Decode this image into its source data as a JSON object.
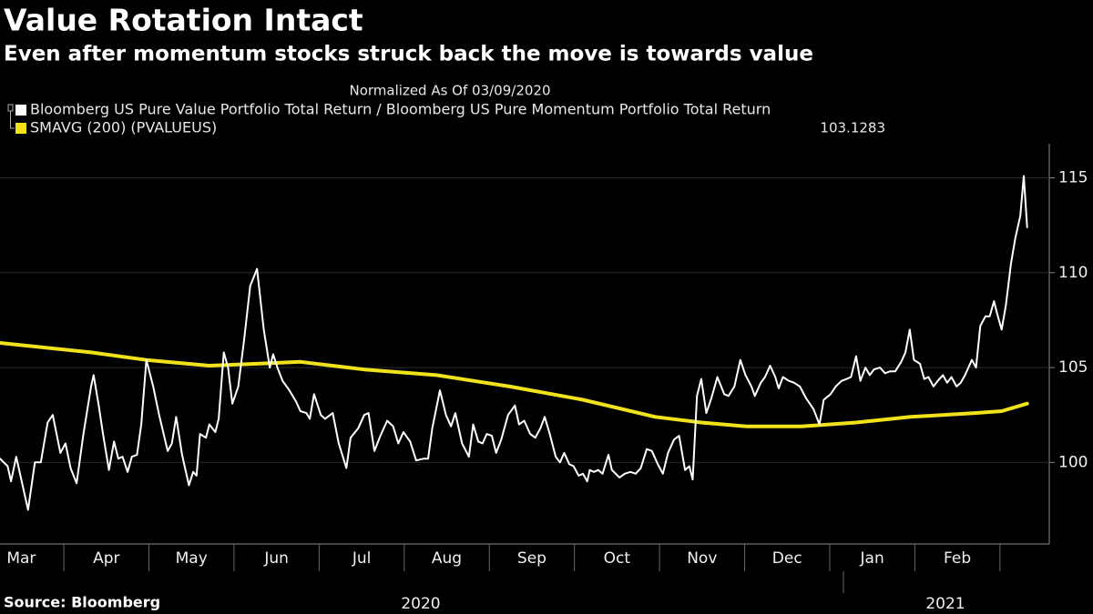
{
  "chart_data": {
    "type": "line",
    "title": "Value Rotation Intact",
    "subtitle": "Even after momentum stocks struck back the move is towards value",
    "note": "Normalized As Of 03/09/2020",
    "source": "Source: Bloomberg",
    "x_year_labels": [
      "2020",
      "2021"
    ],
    "xlim": [
      0.25,
      12.58
    ],
    "xticks": [
      {
        "value": 0.5,
        "label": "Mar"
      },
      {
        "value": 1.5,
        "label": "Apr"
      },
      {
        "value": 2.5,
        "label": "May"
      },
      {
        "value": 3.5,
        "label": "Jun"
      },
      {
        "value": 4.5,
        "label": "Jul"
      },
      {
        "value": 5.5,
        "label": "Aug"
      },
      {
        "value": 6.5,
        "label": "Sep"
      },
      {
        "value": 7.5,
        "label": "Oct"
      },
      {
        "value": 8.5,
        "label": "Nov"
      },
      {
        "value": 9.5,
        "label": "Dec"
      },
      {
        "value": 10.5,
        "label": "Jan"
      },
      {
        "value": 11.5,
        "label": "Feb"
      }
    ],
    "ylim": [
      95.7,
      116.8
    ],
    "yticks": [
      100,
      105,
      110,
      115
    ],
    "grid": true,
    "y_axis_side": "right",
    "series": [
      {
        "name": "Bloomberg US Pure Value Portfolio Total Return / Bloomberg US Pure Momentum Portfolio Total Return",
        "color": "#ffffff",
        "x": [
          0.25,
          0.34,
          0.38,
          0.44,
          0.58,
          0.66,
          0.73,
          0.81,
          0.87,
          0.96,
          1.02,
          1.08,
          1.15,
          1.23,
          1.32,
          1.35,
          1.41,
          1.46,
          1.53,
          1.59,
          1.64,
          1.69,
          1.75,
          1.8,
          1.86,
          1.91,
          1.97,
          2.05,
          2.12,
          2.22,
          2.27,
          2.32,
          2.39,
          2.47,
          2.52,
          2.56,
          2.6,
          2.67,
          2.71,
          2.78,
          2.82,
          2.88,
          2.93,
          2.98,
          3.05,
          3.12,
          3.19,
          3.27,
          3.35,
          3.42,
          3.46,
          3.51,
          3.57,
          3.65,
          3.73,
          3.78,
          3.85,
          3.89,
          3.94,
          4.02,
          4.07,
          4.16,
          4.23,
          4.32,
          4.37,
          4.46,
          4.53,
          4.58,
          4.65,
          4.72,
          4.8,
          4.87,
          4.93,
          4.99,
          5.07,
          5.14,
          5.23,
          5.28,
          5.33,
          5.42,
          5.49,
          5.55,
          5.6,
          5.68,
          5.76,
          5.81,
          5.87,
          5.92,
          5.97,
          6.03,
          6.08,
          6.14,
          6.22,
          6.3,
          6.35,
          6.41,
          6.48,
          6.54,
          6.6,
          6.65,
          6.71,
          6.78,
          6.83,
          6.88,
          6.94,
          6.99,
          7.05,
          7.1,
          7.15,
          7.18,
          7.23,
          7.28,
          7.33,
          7.4,
          7.44,
          7.53,
          7.59,
          7.66,
          7.72,
          7.78,
          7.85,
          7.91,
          7.98,
          8.04,
          8.1,
          8.17,
          8.23,
          8.3,
          8.35,
          8.39,
          8.44,
          8.49,
          8.55,
          8.61,
          8.68,
          8.76,
          8.81,
          8.88,
          8.95,
          9.01,
          9.08,
          9.12,
          9.19,
          9.24,
          9.3,
          9.36,
          9.4,
          9.45,
          9.52,
          9.58,
          9.65,
          9.72,
          9.81,
          9.88,
          9.93,
          10.01,
          10.07,
          10.14,
          10.2,
          10.25,
          10.31,
          10.36,
          10.42,
          10.47,
          10.52,
          10.59,
          10.65,
          10.71,
          10.77,
          10.84,
          10.89,
          10.94,
          10.99,
          11.06,
          11.11,
          11.16,
          11.22,
          11.27,
          11.33,
          11.38,
          11.43,
          11.49,
          11.54,
          11.59,
          11.67,
          11.72,
          11.77,
          11.83,
          11.88,
          11.93,
          11.97,
          12.02,
          12.07,
          12.13,
          12.18,
          12.24,
          12.28,
          12.32
        ],
        "values": [
          100.2,
          99.8,
          99.0,
          100.3,
          97.5,
          100.0,
          100.0,
          102.1,
          102.5,
          100.5,
          101.0,
          99.7,
          98.9,
          101.5,
          104.0,
          104.6,
          103.0,
          101.5,
          99.6,
          101.1,
          100.2,
          100.3,
          99.5,
          100.3,
          100.4,
          102.0,
          105.4,
          104.0,
          102.5,
          100.6,
          101.0,
          102.4,
          100.4,
          98.8,
          99.5,
          99.3,
          101.5,
          101.3,
          102.0,
          101.6,
          102.3,
          105.8,
          105.0,
          103.1,
          104.0,
          106.5,
          109.3,
          110.2,
          107.0,
          105.0,
          105.7,
          105.0,
          104.3,
          103.8,
          103.2,
          102.7,
          102.6,
          102.3,
          103.6,
          102.5,
          102.3,
          102.6,
          101.0,
          99.7,
          101.3,
          101.8,
          102.5,
          102.6,
          100.6,
          101.4,
          102.2,
          101.9,
          101.0,
          101.6,
          101.1,
          100.1,
          100.2,
          100.2,
          101.8,
          103.8,
          102.5,
          101.9,
          102.6,
          101.0,
          100.3,
          102.0,
          101.1,
          101.0,
          101.5,
          101.4,
          100.5,
          101.2,
          102.5,
          103.0,
          102.0,
          102.2,
          101.5,
          101.3,
          101.8,
          102.4,
          101.5,
          100.3,
          100.0,
          100.5,
          99.9,
          99.8,
          99.3,
          99.4,
          99.0,
          99.6,
          99.5,
          99.6,
          99.4,
          100.4,
          99.6,
          99.2,
          99.4,
          99.5,
          99.4,
          99.7,
          100.7,
          100.6,
          99.9,
          99.4,
          100.5,
          101.2,
          101.4,
          99.6,
          99.8,
          99.1,
          103.5,
          104.4,
          102.6,
          103.4,
          104.5,
          103.6,
          103.5,
          104.0,
          105.4,
          104.6,
          104.0,
          103.5,
          104.2,
          104.5,
          105.1,
          104.5,
          103.9,
          104.5,
          104.3,
          104.2,
          104.0,
          103.4,
          102.8,
          102.0,
          103.3,
          103.6,
          104.0,
          104.3,
          104.4,
          104.5,
          105.6,
          104.3,
          105.0,
          104.6,
          104.9,
          105.0,
          104.7,
          104.8,
          104.8,
          105.3,
          105.8,
          107.0,
          105.4,
          105.2,
          104.4,
          104.5,
          104.0,
          104.3,
          104.6,
          104.2,
          104.5,
          104.0,
          104.2,
          104.6,
          105.4,
          105.0,
          107.2,
          107.7,
          107.7,
          108.5,
          107.8,
          107.0,
          108.3,
          110.5,
          111.8,
          113.0,
          115.1,
          112.4
        ],
        "stroke_width": 2
      },
      {
        "name": "SMAVG (200) (PVALUEUS)",
        "color": "#f2e21b",
        "x": [
          0.25,
          1.32,
          1.97,
          2.71,
          3.27,
          3.78,
          4.53,
          5.38,
          6.24,
          7.1,
          7.95,
          8.49,
          9.02,
          9.67,
          10.31,
          10.95,
          11.7,
          12.02,
          12.32
        ],
        "values": [
          106.3,
          105.8,
          105.4,
          105.1,
          105.2,
          105.3,
          104.9,
          104.6,
          104.0,
          103.3,
          102.4,
          102.1,
          101.9,
          101.9,
          102.1,
          102.4,
          102.6,
          102.7,
          103.1
        ],
        "last_value": 103.1283,
        "stroke_width": 4
      }
    ]
  }
}
